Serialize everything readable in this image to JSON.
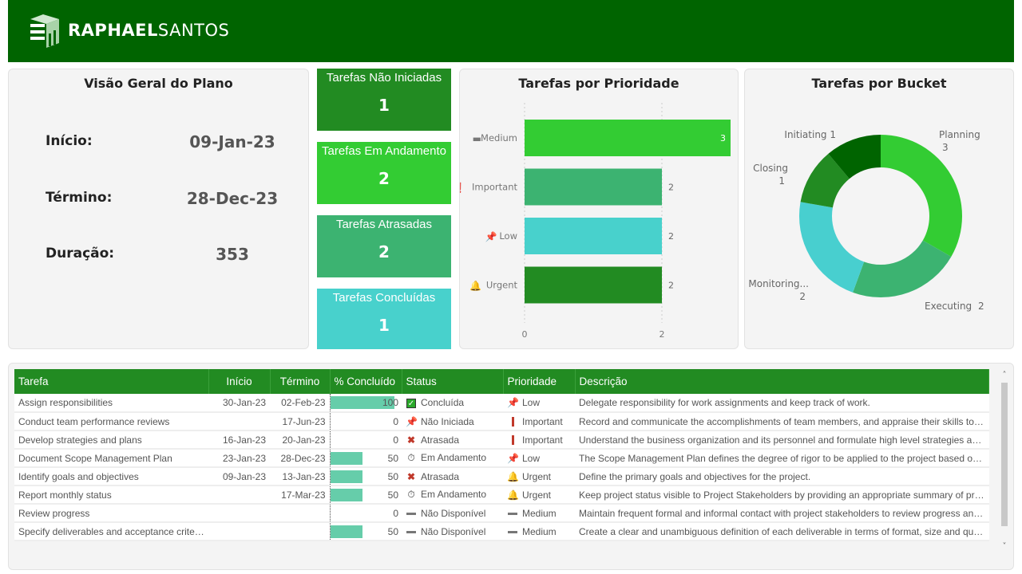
{
  "brand": {
    "bold": "RAPHAEL",
    "light": "SANTOS"
  },
  "overview": {
    "title": "Visão Geral do Plano",
    "start_label": "Início:",
    "start": "09-Jan-23",
    "end_label": "Término:",
    "end": "28-Dec-23",
    "duration_label": "Duração:",
    "duration": "353"
  },
  "kpis": [
    {
      "label": "Tarefas Não Iniciadas",
      "value": "1",
      "color": "#228b22"
    },
    {
      "label": "Tarefas Em Andamento",
      "value": "2",
      "color": "#33cc33"
    },
    {
      "label": "Tarefas Atrasadas",
      "value": "2",
      "color": "#3cb371"
    },
    {
      "label": "Tarefas Concluídas",
      "value": "1",
      "color": "#48d1cc"
    }
  ],
  "chart_data": [
    {
      "type": "bar",
      "orientation": "horizontal",
      "title": "Tarefas por Prioridade",
      "categories": [
        "Medium",
        "Important",
        "Low",
        "Urgent"
      ],
      "category_icons": [
        "dash-icon",
        "exclamation-icon",
        "pin-icon",
        "bell-icon"
      ],
      "values": [
        3,
        2,
        2,
        2
      ],
      "colors": [
        "#33cc33",
        "#3cb371",
        "#48d1cc",
        "#228b22"
      ],
      "xlim": [
        0,
        3
      ],
      "xticks": [
        "0",
        "2"
      ],
      "grid": true
    },
    {
      "type": "pie",
      "donut": true,
      "title": "Tarefas por Bucket",
      "categories": [
        "Planning",
        "Executing",
        "Monitoring...",
        "Closing",
        "Initiating"
      ],
      "values": [
        3,
        2,
        2,
        1,
        1
      ],
      "colors": [
        "#33cc33",
        "#3cb371",
        "#48cfcf",
        "#228b22",
        "#006400"
      ]
    }
  ],
  "table": {
    "headers": [
      "Tarefa",
      "Início",
      "Término",
      "% Concluído",
      "Status",
      "Prioridade",
      "Descrição"
    ],
    "rows": [
      {
        "task": "Assign responsibilities",
        "start": "30-Jan-23",
        "end": "02-Feb-23",
        "pct": 100,
        "status": "Concluída",
        "status_icon": "check-icon",
        "priority": "Low",
        "priority_icon": "pin-icon",
        "desc": "Delegate responsibility for work assignments and keep track of work."
      },
      {
        "task": "Conduct team performance reviews",
        "start": "",
        "end": "17-Jun-23",
        "pct": 0,
        "status": "Não Iniciada",
        "status_icon": "pin-icon",
        "priority": "Important",
        "priority_icon": "exclamation-icon",
        "desc": "Record and communicate the accomplishments of team members, and appraise their skills to facilit..."
      },
      {
        "task": "Develop strategies and plans",
        "start": "16-Jan-23",
        "end": "20-Jan-23",
        "pct": 0,
        "status": "Atrasada",
        "status_icon": "x-icon",
        "priority": "Important",
        "priority_icon": "exclamation-icon",
        "desc": "Understand the business organization and its personnel and formulate high level strategies and pla..."
      },
      {
        "task": "Document Scope Management Plan",
        "start": "23-Jan-23",
        "end": "28-Dec-23",
        "pct": 50,
        "status": "Em Andamento",
        "status_icon": "stopwatch-icon",
        "priority": "Low",
        "priority_icon": "pin-icon",
        "desc": "The Scope Management Plan defines the degree of rigor to be applied to the project based on it's ..."
      },
      {
        "task": "Identify goals and objectives",
        "start": "09-Jan-23",
        "end": "13-Jan-23",
        "pct": 50,
        "status": "Atrasada",
        "status_icon": "x-icon",
        "priority": "Urgent",
        "priority_icon": "bell-icon",
        "desc": "Define the primary goals and objectives for the project."
      },
      {
        "task": "Report monthly status",
        "start": "",
        "end": "17-Mar-23",
        "pct": 50,
        "status": "Em Andamento",
        "status_icon": "stopwatch-icon",
        "priority": "Urgent",
        "priority_icon": "bell-icon",
        "desc": "Keep project status visible to Project Stakeholders by providing an appropriate summary of project ..."
      },
      {
        "task": "Review progress",
        "start": "",
        "end": "",
        "pct": 0,
        "status": "Não Disponível",
        "status_icon": "dash-icon",
        "priority": "Medium",
        "priority_icon": "dash-icon",
        "desc": "Maintain frequent formal and informal contact with project stakeholders to review progress and mai..."
      },
      {
        "task": "Specify deliverables and acceptance criteria",
        "start": "",
        "end": "",
        "pct": 50,
        "status": "Não Disponível",
        "status_icon": "dash-icon",
        "priority": "Medium",
        "priority_icon": "dash-icon",
        "desc": "Create a clear and unambiguous definition of each deliverable in terms of format, size and quality r..."
      }
    ]
  }
}
